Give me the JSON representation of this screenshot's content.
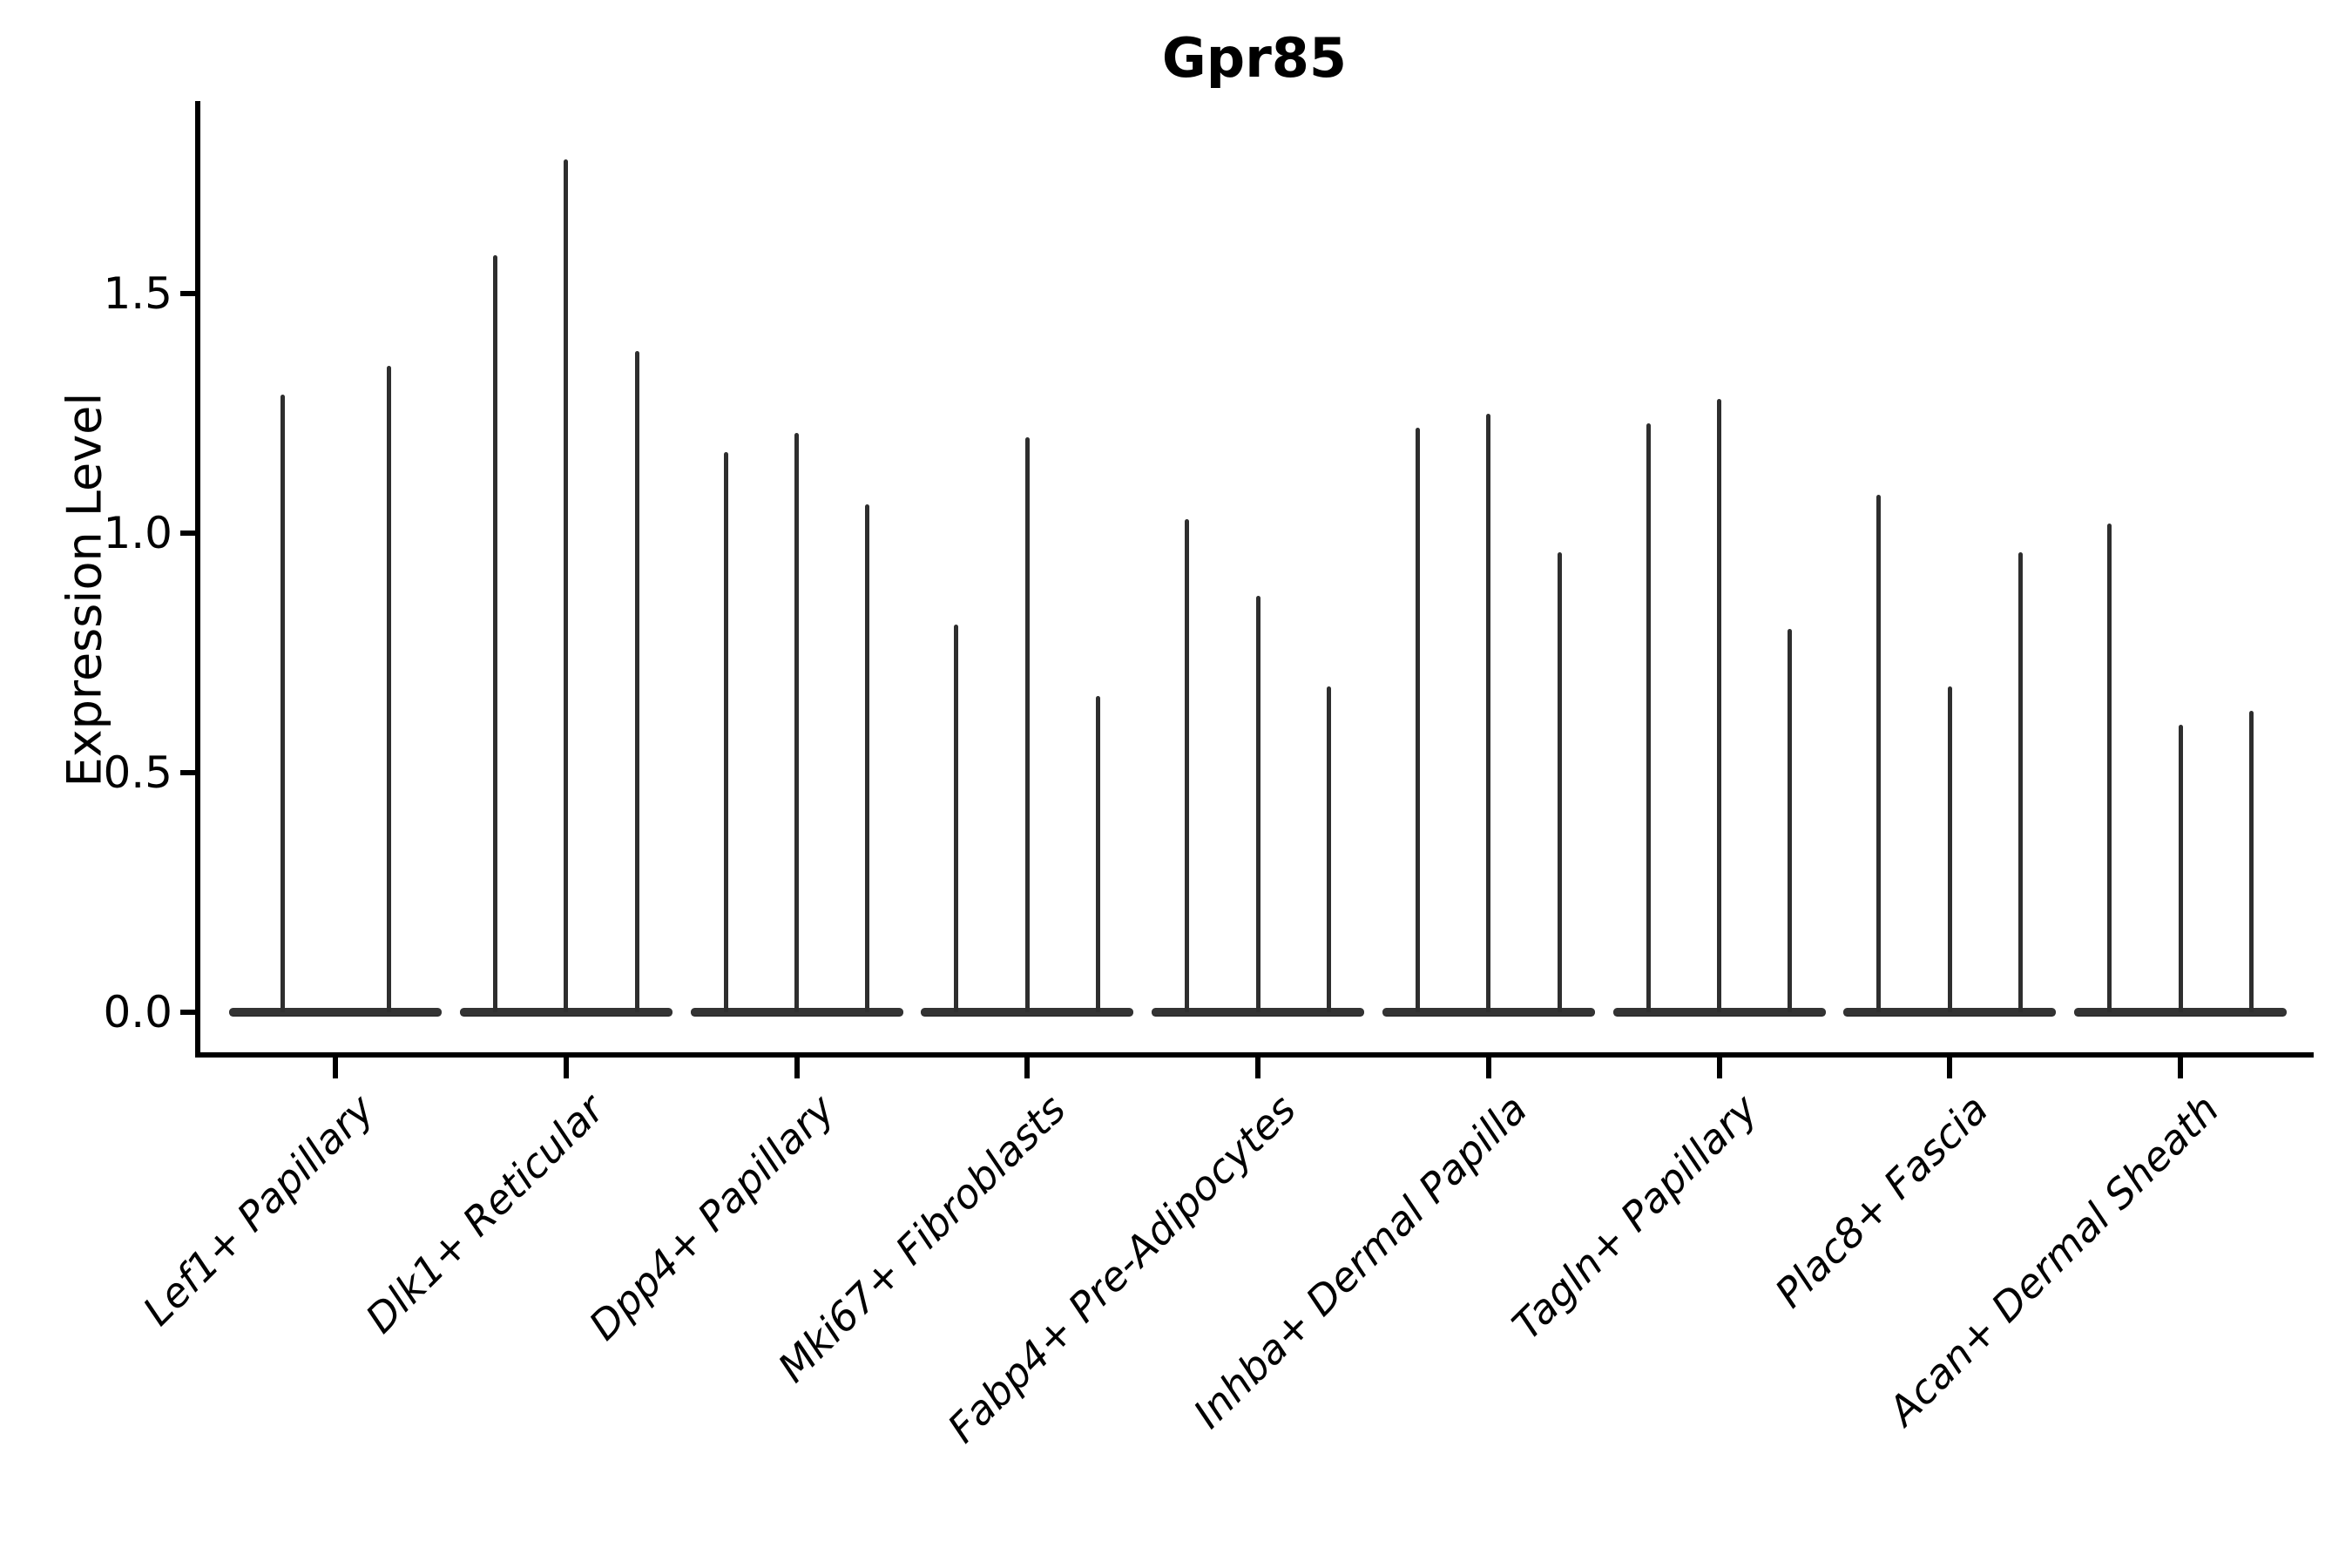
{
  "title": "Gpr85",
  "axes": {
    "ylabel": "Expression Level",
    "ytick_labels": [
      "0.0",
      "0.5",
      "1.0",
      "1.5"
    ]
  },
  "chart_data": {
    "type": "violin",
    "title": "Gpr85",
    "xlabel": "",
    "ylabel": "Expression Level",
    "ylim": [
      -0.08,
      1.9
    ],
    "ytick_values": [
      0.0,
      0.5,
      1.0,
      1.5
    ],
    "grid": false,
    "legend": "none",
    "x_tick_rotation_deg": 45,
    "x_tick_style": "italic",
    "baseline_value": 0.0,
    "categories": [
      "Lef1+ Papillary",
      "Dlk1+ Reticular",
      "Dpp4+ Papillary",
      "Mki67+ Fibroblasts",
      "Fabp4+ Pre-Adipocytes",
      "Inhba+ Dermal Papilla",
      "Tagln+ Papillary",
      "Plac8+ Fascia",
      "Acan+ Dermal Sheath"
    ],
    "groups": [
      {
        "label": "Lef1+ Papillary",
        "violin_maxima": [
          1.29,
          1.35
        ]
      },
      {
        "label": "Dlk1+ Reticular",
        "violin_maxima": [
          1.58,
          1.78,
          1.38
        ]
      },
      {
        "label": "Dpp4+ Papillary",
        "violin_maxima": [
          1.17,
          1.21,
          1.06
        ]
      },
      {
        "label": "Mki67+ Fibroblasts",
        "violin_maxima": [
          0.81,
          1.2,
          0.66
        ]
      },
      {
        "label": "Fabp4+ Pre-Adipocytes",
        "violin_maxima": [
          1.03,
          0.87,
          0.68
        ]
      },
      {
        "label": "Inhba+ Dermal Papilla",
        "violin_maxima": [
          1.22,
          1.25,
          0.96
        ]
      },
      {
        "label": "Tagln+ Papillary",
        "violin_maxima": [
          1.23,
          1.28,
          0.8
        ]
      },
      {
        "label": "Plac8+ Fascia",
        "violin_maxima": [
          1.08,
          0.68,
          0.96
        ]
      },
      {
        "label": "Acan+ Dermal Sheath",
        "violin_maxima": [
          1.02,
          0.6,
          0.63
        ]
      }
    ],
    "colors": {
      "spike": "#2e2e2e",
      "violin_base": "#333333",
      "axis": "#000000",
      "text": "#000000",
      "background": "#ffffff"
    }
  }
}
